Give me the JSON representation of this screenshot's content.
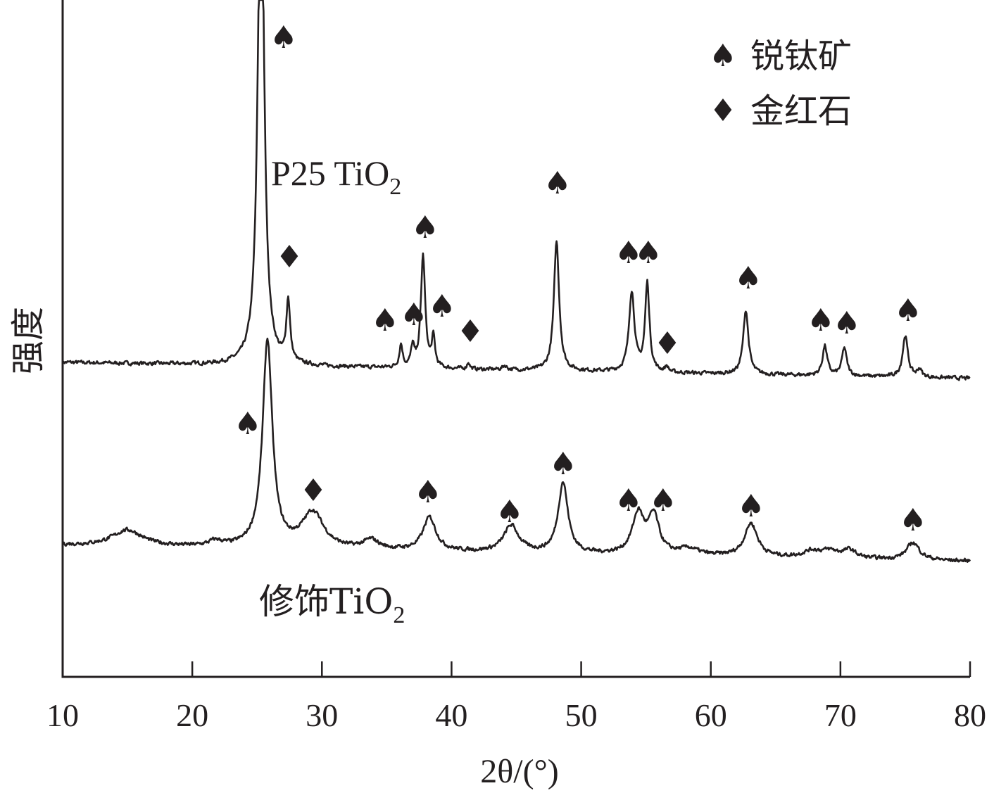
{
  "chart_data": {
    "type": "line",
    "xlabel": "2θ/(°)",
    "ylabel": "强度",
    "xlim": [
      10,
      80
    ],
    "xticks": [
      10,
      20,
      30,
      40,
      50,
      60,
      70,
      80
    ],
    "grid": false,
    "legend_position": "top-right",
    "legend": [
      {
        "symbol": "♠",
        "label": "锐钛矿"
      },
      {
        "symbol": "♦",
        "label": "金红石"
      }
    ],
    "series": [
      {
        "name": "P25 TiO2",
        "label_main": "P25 TiO",
        "label_sub": "2",
        "baseline": 0,
        "baseline_end": -0.12,
        "noise": 0.012,
        "peaks": [
          {
            "x": 25.3,
            "height": 4.0,
            "width": 0.28
          },
          {
            "x": 27.4,
            "height": 0.46,
            "width": 0.17
          },
          {
            "x": 36.1,
            "height": 0.17,
            "width": 0.15
          },
          {
            "x": 37.0,
            "height": 0.15,
            "width": 0.15
          },
          {
            "x": 37.8,
            "height": 0.84,
            "width": 0.2
          },
          {
            "x": 38.6,
            "height": 0.22,
            "width": 0.15
          },
          {
            "x": 41.3,
            "height": 0.05,
            "width": 0.12
          },
          {
            "x": 44.1,
            "height": 0.03,
            "width": 0.2
          },
          {
            "x": 48.1,
            "height": 0.97,
            "width": 0.24
          },
          {
            "x": 53.9,
            "height": 0.6,
            "width": 0.25
          },
          {
            "x": 55.1,
            "height": 0.66,
            "width": 0.2
          },
          {
            "x": 56.6,
            "height": 0.04,
            "width": 0.15
          },
          {
            "x": 62.7,
            "height": 0.48,
            "width": 0.24
          },
          {
            "x": 68.8,
            "height": 0.22,
            "width": 0.22
          },
          {
            "x": 70.3,
            "height": 0.21,
            "width": 0.22
          },
          {
            "x": 75.0,
            "height": 0.31,
            "width": 0.24
          },
          {
            "x": 76.1,
            "height": 0.06,
            "width": 0.2
          }
        ],
        "markers": [
          {
            "x": 27.3,
            "y": 0.0,
            "symbol": "♠"
          },
          {
            "x": 27.5,
            "y": 0.0,
            "symbol": "♦"
          },
          {
            "x": 35.0,
            "y": 0.0,
            "symbol": "♠"
          },
          {
            "x": 37.1,
            "y": 0.0,
            "symbol": "♠"
          },
          {
            "x": 37.9,
            "y": 0.0,
            "symbol": "♠"
          },
          {
            "x": 39.5,
            "y": 0.0,
            "symbol": "♠"
          },
          {
            "x": 41.6,
            "y": 0.0,
            "symbol": "♦"
          },
          {
            "x": 48.1,
            "y": 0.0,
            "symbol": "♠"
          },
          {
            "x": 53.6,
            "y": 0.0,
            "symbol": "♠"
          },
          {
            "x": 55.2,
            "y": 0.0,
            "symbol": "♠"
          },
          {
            "x": 56.8,
            "y": 0.0,
            "symbol": "♦"
          },
          {
            "x": 62.7,
            "y": 0.0,
            "symbol": "♠"
          },
          {
            "x": 68.5,
            "y": 0.0,
            "symbol": "♠"
          },
          {
            "x": 70.4,
            "y": 0.0,
            "symbol": "♠"
          },
          {
            "x": 75.0,
            "y": 0.0,
            "symbol": "♠"
          }
        ]
      },
      {
        "name": "修饰TiO2",
        "label_main": "修饰TiO",
        "label_sub": "2",
        "baseline": 0,
        "baseline_end": -0.12,
        "noise": 0.012,
        "peaks": [
          {
            "x": 15.0,
            "height": 0.12,
            "width": 1.4
          },
          {
            "x": 21.8,
            "height": 0.04,
            "width": 0.6
          },
          {
            "x": 25.8,
            "height": 1.55,
            "width": 0.45
          },
          {
            "x": 29.3,
            "height": 0.27,
            "width": 1.0
          },
          {
            "x": 33.8,
            "height": 0.07,
            "width": 0.7
          },
          {
            "x": 38.3,
            "height": 0.25,
            "width": 0.6
          },
          {
            "x": 44.6,
            "height": 0.2,
            "width": 0.7
          },
          {
            "x": 48.6,
            "height": 0.53,
            "width": 0.45
          },
          {
            "x": 54.4,
            "height": 0.3,
            "width": 0.55
          },
          {
            "x": 55.6,
            "height": 0.28,
            "width": 0.5
          },
          {
            "x": 58.3,
            "height": 0.05,
            "width": 0.9
          },
          {
            "x": 63.1,
            "height": 0.25,
            "width": 0.6
          },
          {
            "x": 67.8,
            "height": 0.05,
            "width": 0.8
          },
          {
            "x": 69.2,
            "height": 0.05,
            "width": 0.8
          },
          {
            "x": 70.7,
            "height": 0.06,
            "width": 0.6
          },
          {
            "x": 75.6,
            "height": 0.13,
            "width": 0.6
          }
        ],
        "markers": [
          {
            "x": 24.5,
            "y": 0.0,
            "symbol": "♠"
          },
          {
            "x": 29.5,
            "y": 0.0,
            "symbol": "♦"
          },
          {
            "x": 38.4,
            "y": 0.0,
            "symbol": "♠"
          },
          {
            "x": 44.6,
            "y": 0.0,
            "symbol": "♠"
          },
          {
            "x": 48.8,
            "y": 0.0,
            "symbol": "♠"
          },
          {
            "x": 54.0,
            "y": 0.0,
            "symbol": "♠"
          },
          {
            "x": 56.7,
            "y": 0.0,
            "symbol": "♠"
          },
          {
            "x": 63.1,
            "y": 0.0,
            "symbol": "♠"
          },
          {
            "x": 75.7,
            "y": 0.0,
            "symbol": "♠"
          }
        ]
      }
    ]
  }
}
